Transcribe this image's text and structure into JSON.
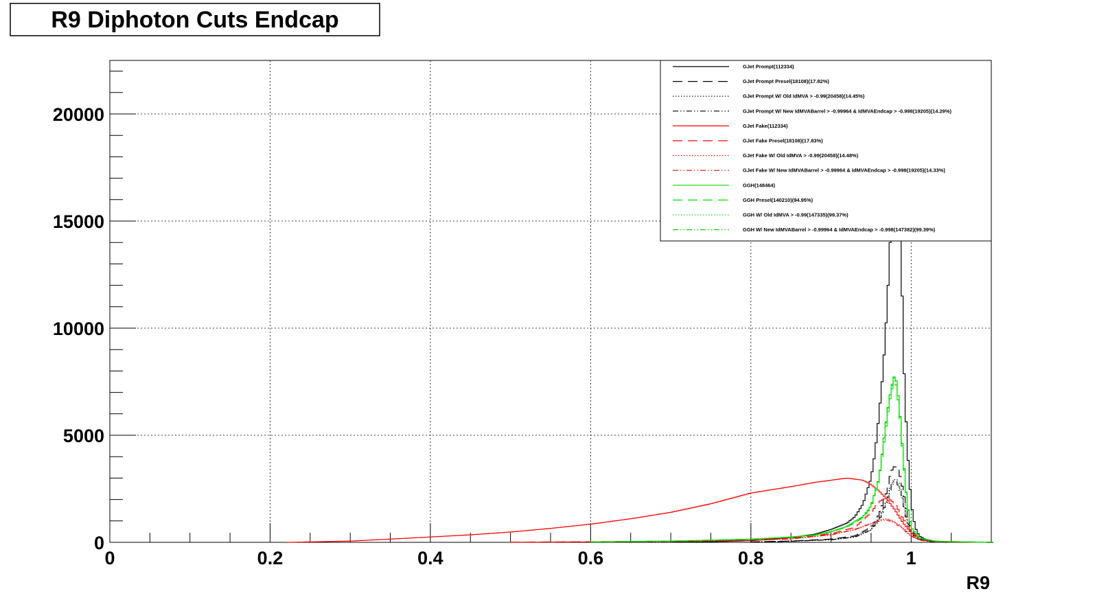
{
  "chart_data": {
    "type": "line",
    "title": "R9 Diphoton Cuts Endcap",
    "xlabel": "R9",
    "ylabel": "",
    "xlim": [
      0,
      1.1
    ],
    "ylim": [
      0,
      22500
    ],
    "grid": true,
    "legend_position": "top-right",
    "x_ticks": [
      {
        "value": 0,
        "label": "0"
      },
      {
        "value": 0.2,
        "label": "0.2"
      },
      {
        "value": 0.4,
        "label": "0.4"
      },
      {
        "value": 0.6,
        "label": "0.6"
      },
      {
        "value": 0.8,
        "label": "0.8"
      },
      {
        "value": 1,
        "label": "1"
      }
    ],
    "y_ticks": [
      {
        "value": 0,
        "label": "0"
      },
      {
        "value": 5000,
        "label": "5000"
      },
      {
        "value": 10000,
        "label": "10000"
      },
      {
        "value": 15000,
        "label": "15000"
      },
      {
        "value": 20000,
        "label": "20000"
      }
    ],
    "series": [
      {
        "name": "GJet Prompt(112334)",
        "color": "#000000",
        "dash": "solid",
        "points": [
          [
            0.7,
            10
          ],
          [
            0.75,
            30
          ],
          [
            0.8,
            80
          ],
          [
            0.84,
            180
          ],
          [
            0.88,
            380
          ],
          [
            0.9,
            600
          ],
          [
            0.92,
            900
          ],
          [
            0.93,
            1200
          ],
          [
            0.94,
            1800
          ],
          [
            0.95,
            3000
          ],
          [
            0.955,
            4200
          ],
          [
            0.96,
            6000
          ],
          [
            0.965,
            8000
          ],
          [
            0.97,
            11000
          ],
          [
            0.975,
            15000
          ],
          [
            0.98,
            20000
          ],
          [
            0.983,
            22000
          ],
          [
            0.987,
            15000
          ],
          [
            0.99,
            9000
          ],
          [
            0.995,
            4500
          ],
          [
            1.0,
            1800
          ],
          [
            1.005,
            700
          ],
          [
            1.01,
            300
          ],
          [
            1.02,
            100
          ],
          [
            1.03,
            40
          ],
          [
            1.05,
            10
          ],
          [
            1.1,
            0
          ]
        ]
      },
      {
        "name": "GJet Prompt Presel(18108)(17.82%)",
        "color": "#000000",
        "dash": "long",
        "points": [
          [
            0.8,
            20
          ],
          [
            0.85,
            60
          ],
          [
            0.9,
            150
          ],
          [
            0.93,
            300
          ],
          [
            0.95,
            700
          ],
          [
            0.96,
            1300
          ],
          [
            0.97,
            2400
          ],
          [
            0.975,
            3300
          ],
          [
            0.98,
            3600
          ],
          [
            0.985,
            3300
          ],
          [
            0.99,
            2400
          ],
          [
            0.995,
            1300
          ],
          [
            1.0,
            600
          ],
          [
            1.01,
            150
          ],
          [
            1.03,
            20
          ],
          [
            1.1,
            0
          ]
        ]
      },
      {
        "name": "GJet Prompt W/ Old IdMVA > -0.99(20458)(14.45%)",
        "color": "#000000",
        "dash": "dot",
        "points": [
          [
            0.8,
            15
          ],
          [
            0.85,
            50
          ],
          [
            0.9,
            120
          ],
          [
            0.93,
            250
          ],
          [
            0.95,
            600
          ],
          [
            0.96,
            1100
          ],
          [
            0.97,
            2000
          ],
          [
            0.975,
            2700
          ],
          [
            0.98,
            3000
          ],
          [
            0.985,
            2700
          ],
          [
            0.99,
            2000
          ],
          [
            0.995,
            1000
          ],
          [
            1.0,
            450
          ],
          [
            1.01,
            120
          ],
          [
            1.03,
            15
          ],
          [
            1.1,
            0
          ]
        ]
      },
      {
        "name": "GJet Prompt W/ New IdMVABarrel > -0.99964 & IdMVAEndcap > -0.998(19205)(14.29%)",
        "color": "#000000",
        "dash": "dashdot",
        "points": [
          [
            0.8,
            15
          ],
          [
            0.85,
            50
          ],
          [
            0.9,
            120
          ],
          [
            0.93,
            250
          ],
          [
            0.95,
            580
          ],
          [
            0.96,
            1050
          ],
          [
            0.97,
            1950
          ],
          [
            0.975,
            2600
          ],
          [
            0.98,
            2900
          ],
          [
            0.985,
            2600
          ],
          [
            0.99,
            1900
          ],
          [
            0.995,
            950
          ],
          [
            1.0,
            420
          ],
          [
            1.01,
            110
          ],
          [
            1.03,
            15
          ],
          [
            1.1,
            0
          ]
        ]
      },
      {
        "name": "GJet Fake(112334)",
        "color": "#ff0000",
        "dash": "solid",
        "points": [
          [
            0.22,
            0
          ],
          [
            0.25,
            20
          ],
          [
            0.3,
            60
          ],
          [
            0.35,
            150
          ],
          [
            0.4,
            250
          ],
          [
            0.45,
            350
          ],
          [
            0.5,
            480
          ],
          [
            0.55,
            650
          ],
          [
            0.6,
            850
          ],
          [
            0.65,
            1100
          ],
          [
            0.7,
            1400
          ],
          [
            0.75,
            1800
          ],
          [
            0.78,
            2100
          ],
          [
            0.8,
            2300
          ],
          [
            0.85,
            2600
          ],
          [
            0.88,
            2800
          ],
          [
            0.9,
            2900
          ],
          [
            0.92,
            3000
          ],
          [
            0.94,
            2900
          ],
          [
            0.95,
            2700
          ],
          [
            0.96,
            2400
          ],
          [
            0.97,
            2000
          ],
          [
            0.98,
            1500
          ],
          [
            0.99,
            900
          ],
          [
            1.0,
            450
          ],
          [
            1.01,
            200
          ],
          [
            1.03,
            60
          ],
          [
            1.05,
            20
          ],
          [
            1.1,
            0
          ]
        ]
      },
      {
        "name": "GJet Fake Presel(18108)(17.83%)",
        "color": "#ff0000",
        "dash": "long",
        "points": [
          [
            0.5,
            10
          ],
          [
            0.6,
            30
          ],
          [
            0.7,
            60
          ],
          [
            0.8,
            120
          ],
          [
            0.85,
            200
          ],
          [
            0.9,
            400
          ],
          [
            0.93,
            700
          ],
          [
            0.95,
            1400
          ],
          [
            0.96,
            1900
          ],
          [
            0.97,
            2100
          ],
          [
            0.98,
            1800
          ],
          [
            0.99,
            1100
          ],
          [
            1.0,
            500
          ],
          [
            1.01,
            200
          ],
          [
            1.03,
            50
          ],
          [
            1.1,
            0
          ]
        ]
      },
      {
        "name": "GJet Fake W/ Old IdMVA > -0.99(20458)(14.48%)",
        "color": "#ff0000",
        "dash": "dot",
        "points": [
          [
            0.5,
            5
          ],
          [
            0.6,
            20
          ],
          [
            0.7,
            40
          ],
          [
            0.8,
            90
          ],
          [
            0.85,
            160
          ],
          [
            0.9,
            350
          ],
          [
            0.93,
            600
          ],
          [
            0.95,
            900
          ],
          [
            0.96,
            1050
          ],
          [
            0.97,
            1100
          ],
          [
            0.98,
            950
          ],
          [
            0.99,
            650
          ],
          [
            1.0,
            300
          ],
          [
            1.01,
            120
          ],
          [
            1.03,
            30
          ],
          [
            1.1,
            0
          ]
        ]
      },
      {
        "name": "GJet Fake W/ New IdMVABarrel > -0.99964 & IdMVAEndcap > -0.998(19205)(14.33%)",
        "color": "#ff0000",
        "dash": "dashdot",
        "points": [
          [
            0.5,
            5
          ],
          [
            0.6,
            20
          ],
          [
            0.7,
            40
          ],
          [
            0.8,
            90
          ],
          [
            0.85,
            160
          ],
          [
            0.9,
            350
          ],
          [
            0.93,
            600
          ],
          [
            0.95,
            880
          ],
          [
            0.96,
            1000
          ],
          [
            0.97,
            1050
          ],
          [
            0.98,
            900
          ],
          [
            0.99,
            620
          ],
          [
            1.0,
            290
          ],
          [
            1.01,
            110
          ],
          [
            1.03,
            30
          ],
          [
            1.1,
            0
          ]
        ]
      },
      {
        "name": "GGH(148464)",
        "color": "#00dd00",
        "dash": "solid",
        "points": [
          [
            0.6,
            20
          ],
          [
            0.7,
            60
          ],
          [
            0.8,
            150
          ],
          [
            0.85,
            250
          ],
          [
            0.88,
            350
          ],
          [
            0.9,
            500
          ],
          [
            0.92,
            750
          ],
          [
            0.94,
            1200
          ],
          [
            0.95,
            1700
          ],
          [
            0.96,
            3000
          ],
          [
            0.965,
            4500
          ],
          [
            0.97,
            6000
          ],
          [
            0.975,
            7200
          ],
          [
            0.98,
            7900
          ],
          [
            0.985,
            6500
          ],
          [
            0.99,
            4000
          ],
          [
            0.995,
            1800
          ],
          [
            1.0,
            700
          ],
          [
            1.01,
            200
          ],
          [
            1.03,
            50
          ],
          [
            1.1,
            0
          ]
        ]
      },
      {
        "name": "GGH Presel(140210)(94.95%)",
        "color": "#00dd00",
        "dash": "long",
        "points": [
          [
            0.6,
            20
          ],
          [
            0.7,
            55
          ],
          [
            0.8,
            140
          ],
          [
            0.85,
            240
          ],
          [
            0.88,
            330
          ],
          [
            0.9,
            480
          ],
          [
            0.92,
            720
          ],
          [
            0.94,
            1150
          ],
          [
            0.95,
            1650
          ],
          [
            0.96,
            2900
          ],
          [
            0.965,
            4300
          ],
          [
            0.97,
            5800
          ],
          [
            0.975,
            7000
          ],
          [
            0.98,
            7700
          ],
          [
            0.985,
            6300
          ],
          [
            0.99,
            3900
          ],
          [
            0.995,
            1750
          ],
          [
            1.0,
            680
          ],
          [
            1.01,
            190
          ],
          [
            1.03,
            45
          ],
          [
            1.1,
            0
          ]
        ]
      },
      {
        "name": "GGH W/ Old IdMVA > -0.99(147335)(99.37%)",
        "color": "#00dd00",
        "dash": "dot",
        "points": [
          [
            0.6,
            20
          ],
          [
            0.7,
            58
          ],
          [
            0.8,
            148
          ],
          [
            0.85,
            248
          ],
          [
            0.88,
            348
          ],
          [
            0.9,
            495
          ],
          [
            0.92,
            745
          ],
          [
            0.94,
            1195
          ],
          [
            0.95,
            1690
          ],
          [
            0.96,
            2980
          ],
          [
            0.965,
            4470
          ],
          [
            0.97,
            5960
          ],
          [
            0.975,
            7150
          ],
          [
            0.98,
            7850
          ],
          [
            0.985,
            6460
          ],
          [
            0.99,
            3970
          ],
          [
            0.995,
            1790
          ],
          [
            1.0,
            695
          ],
          [
            1.01,
            198
          ],
          [
            1.03,
            50
          ],
          [
            1.1,
            0
          ]
        ]
      },
      {
        "name": "GGH W/ New IdMVABarrel > -0.99964 & IdMVAEndcap > -0.998(147382)(99.39%)",
        "color": "#00dd00",
        "dash": "dashdot",
        "points": [
          [
            0.6,
            20
          ],
          [
            0.7,
            58
          ],
          [
            0.8,
            148
          ],
          [
            0.85,
            248
          ],
          [
            0.88,
            348
          ],
          [
            0.9,
            495
          ],
          [
            0.92,
            745
          ],
          [
            0.94,
            1195
          ],
          [
            0.95,
            1690
          ],
          [
            0.96,
            2980
          ],
          [
            0.965,
            4470
          ],
          [
            0.97,
            5960
          ],
          [
            0.975,
            7150
          ],
          [
            0.98,
            7850
          ],
          [
            0.985,
            6460
          ],
          [
            0.99,
            3970
          ],
          [
            0.995,
            1790
          ],
          [
            1.0,
            695
          ],
          [
            1.01,
            198
          ],
          [
            1.03,
            50
          ],
          [
            1.1,
            0
          ]
        ]
      }
    ]
  }
}
